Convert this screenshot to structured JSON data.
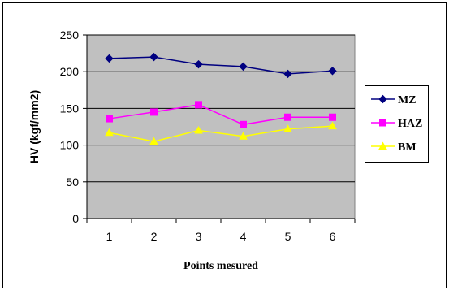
{
  "chart_data": {
    "type": "line",
    "title": "",
    "xlabel": "Points mesured",
    "ylabel": "HV (kgf/mm2)",
    "x": [
      1,
      2,
      3,
      4,
      5,
      6
    ],
    "xticks": [
      "1",
      "2",
      "3",
      "4",
      "5",
      "6"
    ],
    "yticks": [
      "0",
      "50",
      "100",
      "150",
      "200",
      "250"
    ],
    "ylim": [
      0,
      250
    ],
    "grid": true,
    "legend_position": "right",
    "plot_background": "#c0c0c0",
    "series": [
      {
        "name": "MZ",
        "values": [
          218,
          220,
          210,
          207,
          197,
          201
        ],
        "color": "#000080",
        "marker": "diamond"
      },
      {
        "name": "HAZ",
        "values": [
          136,
          145,
          155,
          128,
          138,
          138
        ],
        "color": "#ff00ff",
        "marker": "square"
      },
      {
        "name": "BM",
        "values": [
          117,
          105,
          120,
          112,
          122,
          126
        ],
        "color": "#ffff00",
        "marker": "triangle"
      }
    ]
  }
}
